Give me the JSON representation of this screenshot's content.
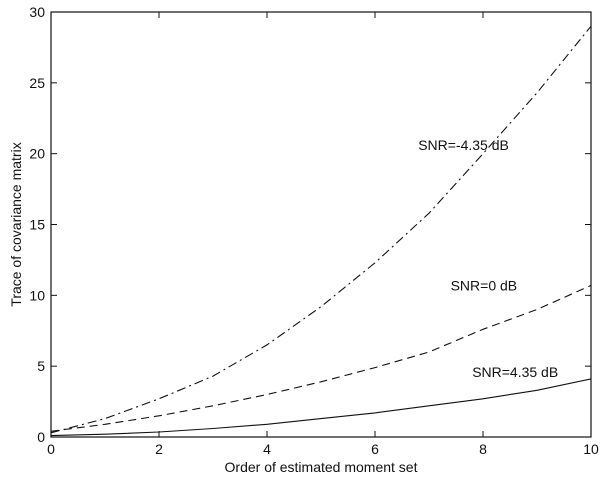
{
  "chart_data": {
    "type": "line",
    "xlabel": "Order of estimated moment set",
    "ylabel": "Trace of covariance matrix",
    "xlim": [
      0,
      10
    ],
    "ylim": [
      0,
      30
    ],
    "xticks": [
      0,
      2,
      4,
      6,
      8,
      10
    ],
    "yticks": [
      0,
      5,
      10,
      15,
      20,
      25,
      30
    ],
    "grid": false,
    "legend": "none",
    "series": [
      {
        "name": "SNR=-4.35 dB",
        "style": "dashdot",
        "x": [
          0,
          1,
          2,
          3,
          4,
          5,
          6,
          7,
          8,
          9,
          10
        ],
        "y": [
          0.3,
          1.3,
          2.7,
          4.3,
          6.5,
          9.2,
          12.3,
          15.8,
          20.0,
          24.3,
          29.0
        ]
      },
      {
        "name": "SNR=0 dB",
        "style": "dashed",
        "x": [
          0,
          1,
          2,
          3,
          4,
          5,
          6,
          7,
          8,
          9,
          10
        ],
        "y": [
          0.4,
          0.9,
          1.5,
          2.2,
          3.0,
          3.9,
          4.9,
          6.0,
          7.6,
          9.0,
          10.7
        ]
      },
      {
        "name": "SNR=4.35 dB",
        "style": "solid",
        "x": [
          0,
          1,
          2,
          3,
          4,
          5,
          6,
          7,
          8,
          9,
          10
        ],
        "y": [
          0.1,
          0.2,
          0.35,
          0.6,
          0.9,
          1.3,
          1.7,
          2.2,
          2.7,
          3.3,
          4.1
        ]
      }
    ],
    "annotations": [
      {
        "text": "SNR=-4.35 dB",
        "x": 6.8,
        "y": 20.6
      },
      {
        "text": "SNR=0 dB",
        "x": 7.4,
        "y": 10.7
      },
      {
        "text": "SNR=4.35 dB",
        "x": 7.8,
        "y": 4.6
      }
    ]
  }
}
